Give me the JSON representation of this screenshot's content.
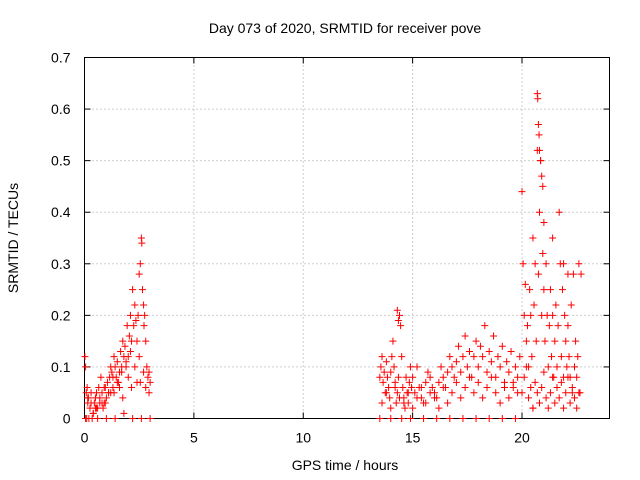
{
  "chart_data": {
    "type": "scatter",
    "title": "Day 073 of 2020, SRMTID for receiver pove",
    "xlabel": "GPS time / hours",
    "ylabel": "SRMTID / TECUs",
    "xlim": [
      0,
      24
    ],
    "ylim": [
      0,
      0.7
    ],
    "xticks": [
      0,
      5,
      10,
      15,
      20
    ],
    "xtick_labels": [
      "0",
      "5",
      "10",
      "15",
      "20"
    ],
    "yticks": [
      0,
      0.1,
      0.2,
      0.3,
      0.4,
      0.5,
      0.6,
      0.7
    ],
    "ytick_labels": [
      "0",
      "0.1",
      "0.2",
      "0.3",
      "0.4",
      "0.5",
      "0.6",
      "0.7"
    ],
    "grid": true,
    "marker": "+",
    "color": "#ff0000",
    "series": [
      {
        "name": "SRMTID",
        "x": [
          0.02,
          0.05,
          0.08,
          0.1,
          0.12,
          0.15,
          0.18,
          0.2,
          0.25,
          0.3,
          0.35,
          0.4,
          0.45,
          0.5,
          0.55,
          0.6,
          0.65,
          0.7,
          0.75,
          0.8,
          0.85,
          0.9,
          0.95,
          1.0,
          1.05,
          1.1,
          1.15,
          1.2,
          1.25,
          1.3,
          1.35,
          1.4,
          1.45,
          1.5,
          1.55,
          1.6,
          1.65,
          1.7,
          1.75,
          1.8,
          1.85,
          1.9,
          1.95,
          2.0,
          2.05,
          2.1,
          2.15,
          2.2,
          2.25,
          2.3,
          2.35,
          2.4,
          2.45,
          2.5,
          2.55,
          2.6,
          2.62,
          2.65,
          2.7,
          2.72,
          2.75,
          2.8,
          2.85,
          2.9,
          2.95,
          3.0,
          0.3,
          0.5,
          0.7,
          0.9,
          1.1,
          1.3,
          1.5,
          1.7,
          1.9,
          2.1,
          2.3,
          2.5,
          2.7,
          0.4,
          0.8,
          1.2,
          1.6,
          2.0,
          2.4,
          2.8,
          0.05,
          0.6,
          1.0,
          1.4,
          1.8,
          2.2,
          2.6,
          3.0,
          0.15,
          0.55,
          0.95,
          1.35,
          1.75,
          2.15,
          2.55,
          2.95,
          13.5,
          13.55,
          13.6,
          13.65,
          13.7,
          13.75,
          13.8,
          13.85,
          13.9,
          13.95,
          14.0,
          14.05,
          14.1,
          14.15,
          14.2,
          14.25,
          14.3,
          14.35,
          14.4,
          14.45,
          14.5,
          14.55,
          14.6,
          14.65,
          14.7,
          14.75,
          14.8,
          14.85,
          14.9,
          14.95,
          15.0,
          15.1,
          15.2,
          15.3,
          15.4,
          15.5,
          15.6,
          15.7,
          15.8,
          15.9,
          16.0,
          16.1,
          16.2,
          16.3,
          16.4,
          16.5,
          16.6,
          16.7,
          16.8,
          16.9,
          17.0,
          17.1,
          17.2,
          17.3,
          17.4,
          17.5,
          17.6,
          17.7,
          17.8,
          17.9,
          18.0,
          18.1,
          18.2,
          18.3,
          18.4,
          18.5,
          18.6,
          18.7,
          18.8,
          18.9,
          19.0,
          19.1,
          19.2,
          19.3,
          19.4,
          19.5,
          19.6,
          19.7,
          19.8,
          19.9,
          13.6,
          13.8,
          14.0,
          14.2,
          14.4,
          14.6,
          14.8,
          15.0,
          15.2,
          15.4,
          15.6,
          15.8,
          16.0,
          16.2,
          16.4,
          16.6,
          16.8,
          17.0,
          17.2,
          17.4,
          17.6,
          17.8,
          18.0,
          18.2,
          18.4,
          18.6,
          18.8,
          19.0,
          19.2,
          19.4,
          19.6,
          19.8,
          14.3,
          14.35,
          14.9,
          15.5,
          16.1,
          16.7,
          17.3,
          17.9,
          18.5,
          19.1,
          19.7,
          13.5,
          14.0,
          14.5,
          20.0,
          20.05,
          20.1,
          20.15,
          20.2,
          20.25,
          20.3,
          20.35,
          20.4,
          20.45,
          20.5,
          20.55,
          20.6,
          20.65,
          20.7,
          20.75,
          20.8,
          20.85,
          20.9,
          20.95,
          21.0,
          21.05,
          21.1,
          21.15,
          21.2,
          21.25,
          21.3,
          21.35,
          21.4,
          21.45,
          21.5,
          21.55,
          21.6,
          21.65,
          21.7,
          21.75,
          21.8,
          21.85,
          21.9,
          21.95,
          22.0,
          22.05,
          22.1,
          22.15,
          22.2,
          22.25,
          22.3,
          22.35,
          22.4,
          22.45,
          22.5,
          22.55,
          22.6,
          22.65,
          22.7,
          20.0,
          20.1,
          20.2,
          20.3,
          20.4,
          20.5,
          20.6,
          20.7,
          20.8,
          20.9,
          21.0,
          21.1,
          21.2,
          21.3,
          21.4,
          21.5,
          21.6,
          21.7,
          21.8,
          21.9,
          22.0,
          22.1,
          22.2,
          22.3,
          22.4,
          22.5,
          22.6,
          20.7,
          20.72,
          20.75,
          20.78,
          20.8,
          20.85,
          20.9,
          20.95,
          21.0,
          21.4,
          21.9,
          22.1,
          20.5
        ],
        "y": [
          0.12,
          0.1,
          0.05,
          0.0,
          0.06,
          0.03,
          0.04,
          0.0,
          0.02,
          0.05,
          0.0,
          0.01,
          0.03,
          0.04,
          0.05,
          0.02,
          0.06,
          0.03,
          0.08,
          0.05,
          0.02,
          0.03,
          0.06,
          0.04,
          0.07,
          0.05,
          0.08,
          0.1,
          0.09,
          0.06,
          0.12,
          0.1,
          0.08,
          0.11,
          0.07,
          0.09,
          0.13,
          0.1,
          0.15,
          0.12,
          0.14,
          0.1,
          0.18,
          0.12,
          0.16,
          0.2,
          0.15,
          0.25,
          0.18,
          0.22,
          0.19,
          0.15,
          0.2,
          0.28,
          0.3,
          0.35,
          0.34,
          0.25,
          0.22,
          0.18,
          0.2,
          0.15,
          0.1,
          0.08,
          0.09,
          0.07,
          0.03,
          0.02,
          0.04,
          0.06,
          0.05,
          0.08,
          0.07,
          0.09,
          0.11,
          0.13,
          0.1,
          0.12,
          0.09,
          0.01,
          0.03,
          0.05,
          0.06,
          0.08,
          0.07,
          0.06,
          0.0,
          0.0,
          0.0,
          0.0,
          0.01,
          0.0,
          0.0,
          0.0,
          0.04,
          0.02,
          0.03,
          0.05,
          0.04,
          0.06,
          0.07,
          0.05,
          0.08,
          0.1,
          0.12,
          0.07,
          0.09,
          0.05,
          0.11,
          0.08,
          0.06,
          0.04,
          0.09,
          0.12,
          0.15,
          0.1,
          0.07,
          0.03,
          0.05,
          0.08,
          0.2,
          0.18,
          0.12,
          0.06,
          0.04,
          0.02,
          0.08,
          0.05,
          0.03,
          0.07,
          0.1,
          0.06,
          0.08,
          0.05,
          0.1,
          0.06,
          0.04,
          0.03,
          0.07,
          0.09,
          0.08,
          0.06,
          0.05,
          0.04,
          0.07,
          0.1,
          0.08,
          0.06,
          0.09,
          0.12,
          0.1,
          0.08,
          0.11,
          0.14,
          0.09,
          0.12,
          0.16,
          0.1,
          0.13,
          0.08,
          0.12,
          0.15,
          0.1,
          0.14,
          0.12,
          0.18,
          0.09,
          0.13,
          0.11,
          0.16,
          0.08,
          0.12,
          0.1,
          0.14,
          0.07,
          0.11,
          0.09,
          0.13,
          0.06,
          0.1,
          0.08,
          0.12,
          0.03,
          0.05,
          0.02,
          0.06,
          0.04,
          0.03,
          0.05,
          0.02,
          0.04,
          0.06,
          0.03,
          0.05,
          0.04,
          0.02,
          0.06,
          0.03,
          0.05,
          0.07,
          0.04,
          0.06,
          0.08,
          0.05,
          0.07,
          0.04,
          0.06,
          0.08,
          0.05,
          0.03,
          0.06,
          0.04,
          0.07,
          0.05,
          0.21,
          0.19,
          0.0,
          0.0,
          0.0,
          0.0,
          0.0,
          0.0,
          0.0,
          0.0,
          0.0,
          0.0,
          0.0,
          0.0,
          0.44,
          0.3,
          0.2,
          0.26,
          0.15,
          0.18,
          0.1,
          0.25,
          0.2,
          0.12,
          0.35,
          0.22,
          0.3,
          0.15,
          0.52,
          0.28,
          0.4,
          0.5,
          0.2,
          0.32,
          0.25,
          0.15,
          0.3,
          0.2,
          0.1,
          0.18,
          0.25,
          0.12,
          0.2,
          0.08,
          0.15,
          0.22,
          0.1,
          0.18,
          0.4,
          0.3,
          0.12,
          0.25,
          0.08,
          0.2,
          0.15,
          0.1,
          0.18,
          0.12,
          0.08,
          0.22,
          0.05,
          0.28,
          0.1,
          0.15,
          0.08,
          0.12,
          0.3,
          0.05,
          0.28,
          0.05,
          0.08,
          0.1,
          0.04,
          0.06,
          0.02,
          0.07,
          0.05,
          0.03,
          0.06,
          0.09,
          0.04,
          0.02,
          0.05,
          0.08,
          0.03,
          0.06,
          0.04,
          0.07,
          0.02,
          0.05,
          0.08,
          0.03,
          0.06,
          0.04,
          0.02,
          0.05,
          0.63,
          0.62,
          0.57,
          0.55,
          0.52,
          0.5,
          0.47,
          0.45,
          0.38,
          0.35,
          0.3,
          0.28,
          0.02
        ]
      }
    ]
  }
}
